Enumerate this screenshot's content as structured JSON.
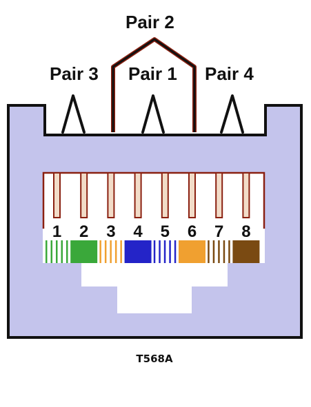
{
  "pair_labels": {
    "pair2": "Pair 2",
    "pair3": "Pair 3",
    "pair1": "Pair 1",
    "pair4": "Pair 4"
  },
  "standard_caption": "T568A",
  "pins": [
    {
      "number": "1",
      "color": "#3aa83a",
      "striped": true
    },
    {
      "number": "2",
      "color": "#3aa83a",
      "striped": false
    },
    {
      "number": "3",
      "color": "#f0a030",
      "striped": true
    },
    {
      "number": "4",
      "color": "#2424c8",
      "striped": false
    },
    {
      "number": "5",
      "color": "#2424c8",
      "striped": true
    },
    {
      "number": "6",
      "color": "#f0a030",
      "striped": false
    },
    {
      "number": "7",
      "color": "#7a4a12",
      "striped": true
    },
    {
      "number": "8",
      "color": "#7a4a12",
      "striped": false
    }
  ],
  "colors": {
    "jack_body": "#c4c4ec",
    "outline": "#111111",
    "contact_wire": "#8a2010",
    "contact_fill": "#f2dcc8"
  }
}
